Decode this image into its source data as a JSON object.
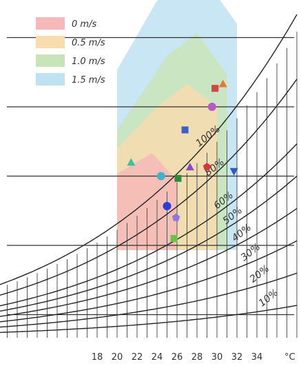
{
  "chart_data": {
    "type": "scatter",
    "title": "",
    "xlabel": "",
    "ylabel": "",
    "x_unit": "°C",
    "x_ticks": [
      18,
      20,
      22,
      24,
      26,
      28,
      30,
      32,
      34
    ],
    "xlim": [
      7,
      38
    ],
    "rh_curves": [
      10,
      20,
      30,
      40,
      50,
      60,
      80,
      100
    ],
    "rh_labels": [
      "10%",
      "20%",
      "30%",
      "40%",
      "50%",
      "60%",
      "80%",
      "100%"
    ],
    "grid": true,
    "legend_position": "top-left",
    "comfort_zones": [
      {
        "name": "0   m/s",
        "color": "#f6b8b8",
        "outline": [
          [
            20,
            19
          ],
          [
            20,
            35.5
          ],
          [
            23.5,
            40
          ],
          [
            26,
            34
          ],
          [
            26,
            19
          ]
        ]
      },
      {
        "name": "0.5 m/s",
        "color": "#f7dcae",
        "outline": [
          [
            20,
            19
          ],
          [
            20,
            41
          ],
          [
            24,
            50
          ],
          [
            27,
            55
          ],
          [
            30,
            50
          ],
          [
            30,
            19
          ]
        ]
      },
      {
        "name": "1.0 m/s",
        "color": "#c9e4b8",
        "outline": [
          [
            20,
            19
          ],
          [
            20,
            45
          ],
          [
            25,
            61
          ],
          [
            28,
            66
          ],
          [
            31,
            57
          ],
          [
            31,
            19
          ]
        ]
      },
      {
        "name": "1.5 m/s",
        "color": "#bfe2f3",
        "outline": [
          [
            20,
            19
          ],
          [
            20,
            58
          ],
          [
            24,
            73
          ],
          [
            29,
            77
          ],
          [
            32,
            68
          ],
          [
            32,
            19
          ]
        ]
      }
    ],
    "points": [
      {
        "shape": "square",
        "color": "#d64545",
        "x": 29.8,
        "y": 54
      },
      {
        "shape": "triangle-up",
        "color": "#e07a3a",
        "x": 30.6,
        "y": 55
      },
      {
        "shape": "circle",
        "color": "#b45ac9",
        "x": 29.5,
        "y": 50
      },
      {
        "shape": "square",
        "color": "#3f5fc4",
        "x": 26.8,
        "y": 45
      },
      {
        "shape": "triangle-up",
        "color": "#8a48c9",
        "x": 27.3,
        "y": 37
      },
      {
        "shape": "square",
        "color": "#2e8b3c",
        "x": 26.1,
        "y": 34.5
      },
      {
        "shape": "pentagon",
        "color": "#d23a3a",
        "x": 29,
        "y": 37
      },
      {
        "shape": "triangle-down",
        "color": "#2f5bb6",
        "x": 31.7,
        "y": 36
      },
      {
        "shape": "triangle-up",
        "color": "#3fbf9f",
        "x": 21.4,
        "y": 38
      },
      {
        "shape": "circle",
        "color": "#3fb4c8",
        "x": 24.4,
        "y": 35
      },
      {
        "shape": "circle",
        "color": "#2b3fd0",
        "x": 25,
        "y": 28.5
      },
      {
        "shape": "pentagon",
        "color": "#8c7bd6",
        "x": 25.9,
        "y": 26
      },
      {
        "shape": "square",
        "color": "#69c24a",
        "x": 25.7,
        "y": 21.5
      }
    ]
  }
}
